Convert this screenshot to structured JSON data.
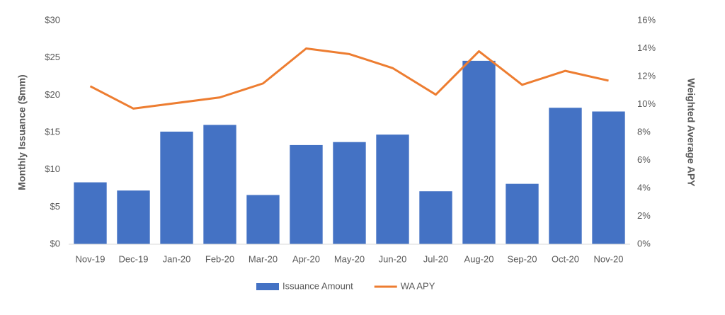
{
  "chart_data": {
    "type": "bar-line",
    "y_label": "Monthly Issuance ($mm)",
    "y2_label": "Weighted Average APY",
    "categories": [
      "Nov-19",
      "Dec-19",
      "Jan-20",
      "Feb-20",
      "Mar-20",
      "Apr-20",
      "May-20",
      "Jun-20",
      "Jul-20",
      "Aug-20",
      "Sep-20",
      "Oct-20",
      "Nov-20"
    ],
    "series": [
      {
        "name": "Issuance Amount",
        "type": "bar",
        "color": "#4472c4",
        "values": [
          8.3,
          7.2,
          15.1,
          16.0,
          6.6,
          13.3,
          13.7,
          14.7,
          7.1,
          24.6,
          8.1,
          18.3,
          17.8
        ]
      },
      {
        "name": "WA APY",
        "type": "line",
        "axis": "y2",
        "color": "#ed7d31",
        "values": [
          11.3,
          9.7,
          10.1,
          10.5,
          11.5,
          14.0,
          13.6,
          12.6,
          10.7,
          13.8,
          11.4,
          12.4,
          11.7
        ]
      }
    ],
    "ylim": [
      0,
      30
    ],
    "yticks": [
      {
        "value": 0,
        "label": "$0"
      },
      {
        "value": 5,
        "label": "$5"
      },
      {
        "value": 10,
        "label": "$10"
      },
      {
        "value": 15,
        "label": "$15"
      },
      {
        "value": 20,
        "label": "$20"
      },
      {
        "value": 25,
        "label": "$25"
      },
      {
        "value": 30,
        "label": "$30"
      }
    ],
    "y2lim": [
      0,
      16
    ],
    "y2ticks": [
      {
        "value": 0,
        "label": "0%"
      },
      {
        "value": 2,
        "label": "2%"
      },
      {
        "value": 4,
        "label": "4%"
      },
      {
        "value": 6,
        "label": "6%"
      },
      {
        "value": 8,
        "label": "8%"
      },
      {
        "value": 10,
        "label": "10%"
      },
      {
        "value": 12,
        "label": "12%"
      },
      {
        "value": 14,
        "label": "14%"
      },
      {
        "value": 16,
        "label": "16%"
      }
    ],
    "legend": "bottom"
  }
}
